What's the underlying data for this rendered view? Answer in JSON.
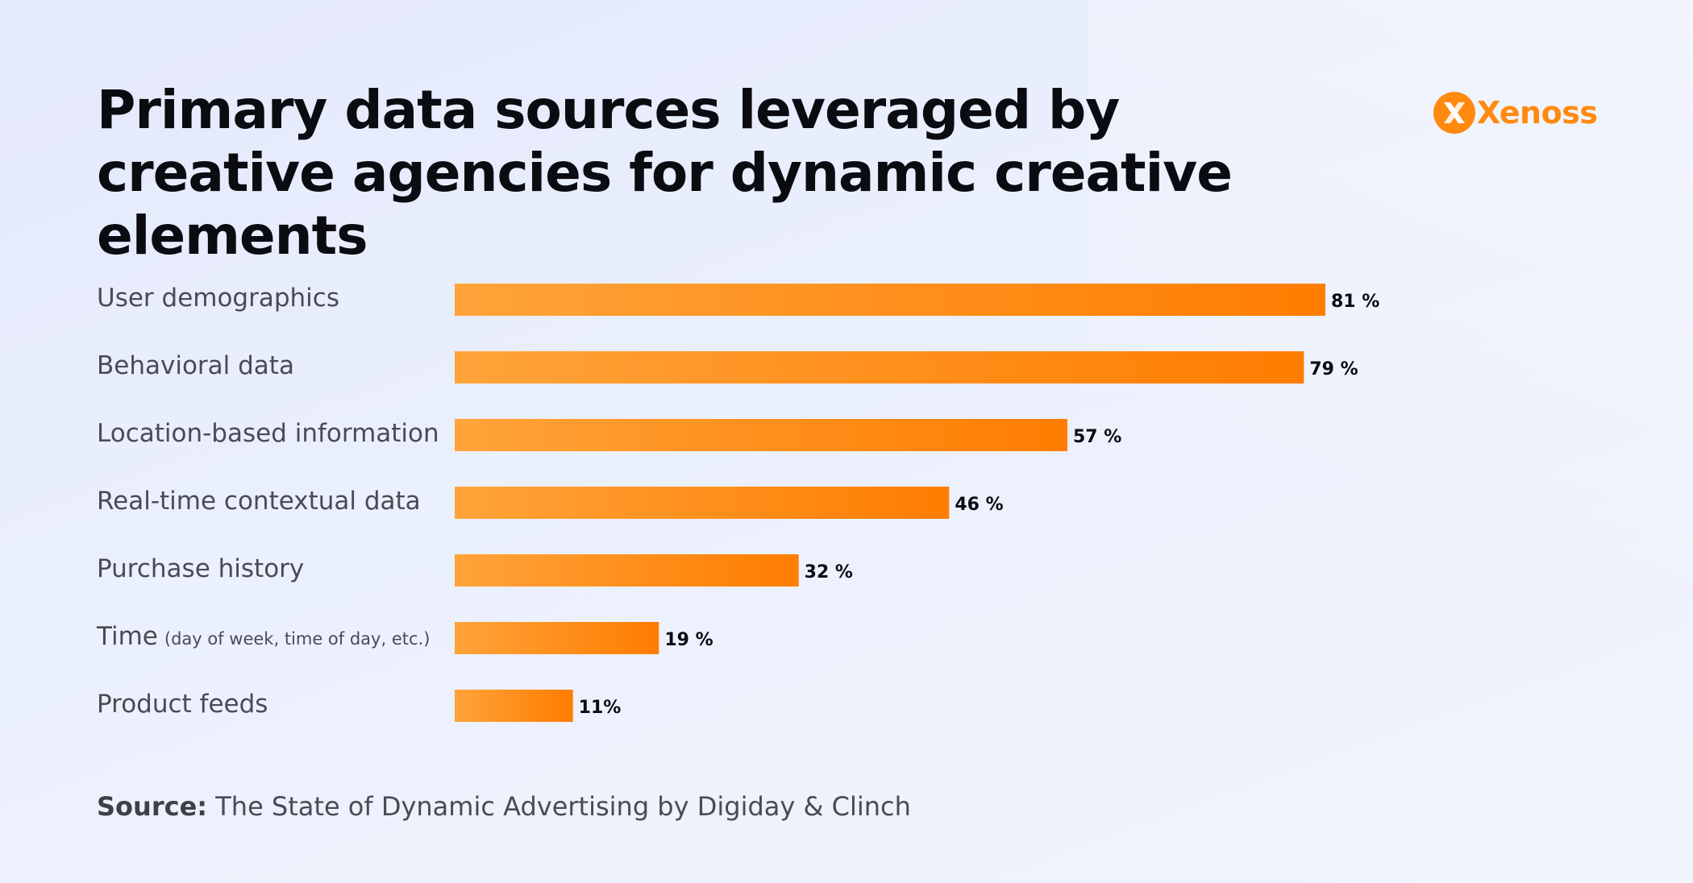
{
  "title": "Primary data sources leveraged by creative agencies for dynamic creative elements",
  "logo": {
    "text": "Xenoss",
    "icon": "xenoss-logo-icon",
    "color": "#ff8a0f"
  },
  "source": {
    "label": "Source:",
    "text": "The State of Dynamic Advertising by Digiday & Clinch"
  },
  "colors": {
    "bar_start": "#ffa33a",
    "bar_end": "#ff7d00"
  },
  "chart_data": {
    "type": "bar",
    "orientation": "horizontal",
    "categories": [
      {
        "label": "User demographics",
        "note": ""
      },
      {
        "label": "Behavioral data",
        "note": ""
      },
      {
        "label": "Location-based information",
        "note": ""
      },
      {
        "label": "Real-time contextual data",
        "note": ""
      },
      {
        "label": "Purchase history",
        "note": ""
      },
      {
        "label": "Time",
        "note": "(day of week, time of day, etc.)"
      },
      {
        "label": "Product feeds",
        "note": ""
      }
    ],
    "values": [
      81,
      79,
      57,
      46,
      32,
      19,
      11
    ],
    "value_labels": [
      "81 %",
      "79 %",
      "57 %",
      "46 %",
      "32 %",
      "19 %",
      "11%"
    ],
    "xlim": [
      0,
      81
    ],
    "grid": false,
    "legend": "none"
  }
}
